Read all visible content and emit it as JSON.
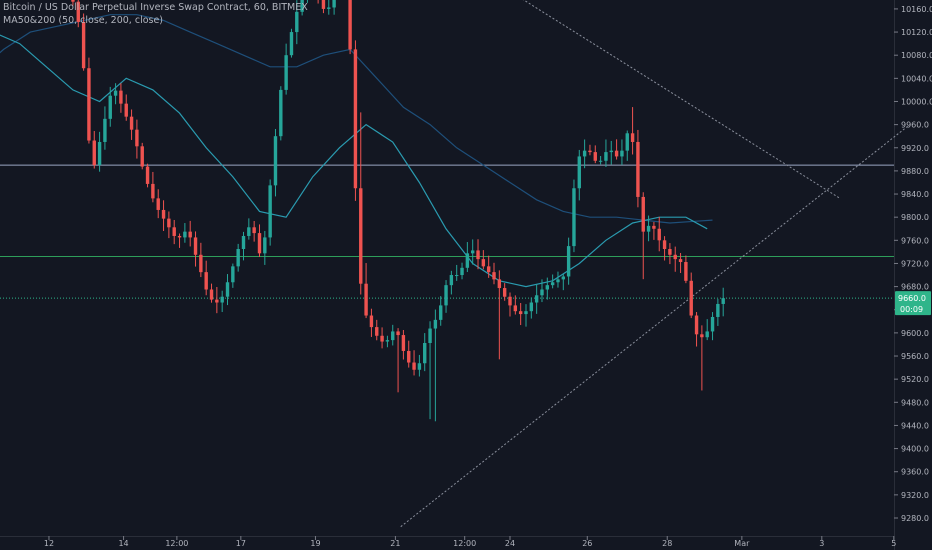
{
  "header": {
    "title": "Bitcoin / US Dollar Perpetual Inverse Swap Contract, 60, BITMEX",
    "indicator_label": "MA50&200",
    "indicator_params": "(50, close, 200, close)"
  },
  "colors": {
    "background": "#131722",
    "up_candle": "#26a69a",
    "down_candle": "#ef5350",
    "ma50": "#2a9bb0",
    "ma200": "#1e4f7a",
    "resistance_line": "#9aa7c4",
    "support_line": "#2e9e5a",
    "last_price_line": "#2fb58a",
    "trendline": "#8a8f9c",
    "axis_text": "#b2b5be"
  },
  "price_tag": {
    "price": "9660.0",
    "countdown": "00:09"
  },
  "chart_data": {
    "type": "candlestick",
    "symbol": "Bitcoin / US Dollar Perpetual Inverse Swap Contract",
    "interval": "60",
    "exchange": "BITMEX",
    "x_tick_labels": [
      "12",
      "14",
      "12:00",
      "17",
      "19",
      "21",
      "12:00",
      "24",
      "26",
      "28",
      "Mar",
      "3",
      "5"
    ],
    "y_ticks": [
      9280,
      9320,
      9360,
      9400,
      9440,
      9480,
      9520,
      9560,
      9600,
      9640,
      9680,
      9720,
      9760,
      9800,
      9840,
      9880,
      9920,
      9960,
      10000,
      10040,
      10080,
      10120,
      10160
    ],
    "y_tick_labels": [
      "9280.0",
      "9320.0",
      "9360.0",
      "9400.0",
      "9440.0",
      "9480.0",
      "9520.0",
      "9560.0",
      "9600.0",
      "9640.0",
      "9680.0",
      "9720.0",
      "9760.0",
      "9800.0",
      "9840.0",
      "9880.0",
      "9920.0",
      "9960.0",
      "10000.0",
      "10040.0",
      "10080.0",
      "10120.0",
      "10160.0"
    ],
    "ylim": [
      9260,
      10170
    ],
    "horizontal_levels": [
      {
        "name": "resistance",
        "price": 9890
      },
      {
        "name": "support",
        "price": 9732
      },
      {
        "name": "last-price",
        "price": 9660
      }
    ],
    "trendlines": [
      {
        "name": "upper-trendline",
        "points": [
          [
            -6,
            10225
          ],
          [
            62,
            9832
          ]
        ]
      },
      {
        "name": "lower-trendline",
        "points": [
          [
            -20.5,
            9265
          ],
          [
            75,
            9960
          ]
        ]
      }
    ],
    "anchors": [
      {
        "t": -130,
        "p": 9760
      },
      {
        "t": -126,
        "p": 9800
      },
      {
        "t": -122,
        "p": 9850
      },
      {
        "t": -118,
        "p": 9840
      },
      {
        "t": -114,
        "p": 9780
      },
      {
        "t": -112,
        "p": 9760
      },
      {
        "t": -108,
        "p": 9795
      },
      {
        "t": -104,
        "p": 9870
      },
      {
        "t": -102,
        "p": 10150
      },
      {
        "t": -98,
        "p": 10180
      },
      {
        "t": -94,
        "p": 10200
      },
      {
        "t": -90,
        "p": 10200
      },
      {
        "t": -86,
        "p": 10195
      },
      {
        "t": -82,
        "p": 10190
      },
      {
        "t": -80,
        "p": 10120
      },
      {
        "t": -78,
        "p": 9870
      },
      {
        "t": -76,
        "p": 9950
      },
      {
        "t": -74,
        "p": 10030
      },
      {
        "t": -72,
        "p": 9985
      },
      {
        "t": -70,
        "p": 9940
      },
      {
        "t": -68,
        "p": 9870
      },
      {
        "t": -66,
        "p": 9820
      },
      {
        "t": -64,
        "p": 9790
      },
      {
        "t": -62,
        "p": 9760
      },
      {
        "t": -60,
        "p": 9780
      },
      {
        "t": -58,
        "p": 9720
      },
      {
        "t": -56,
        "p": 9660
      },
      {
        "t": -54,
        "p": 9650
      },
      {
        "t": -52,
        "p": 9700
      },
      {
        "t": -50,
        "p": 9760
      },
      {
        "t": -48,
        "p": 9790
      },
      {
        "t": -46,
        "p": 9720
      },
      {
        "t": -44,
        "p": 9900
      },
      {
        "t": -42,
        "p": 10060
      },
      {
        "t": -40,
        "p": 10140
      },
      {
        "t": -38,
        "p": 10200
      },
      {
        "t": -36,
        "p": 10190
      },
      {
        "t": -34,
        "p": 10150
      },
      {
        "t": -32,
        "p": 10200
      },
      {
        "t": -30,
        "p": 10210
      },
      {
        "t": -28,
        "p": 9730
      },
      {
        "t": -27,
        "p": 9640
      },
      {
        "t": -25,
        "p": 9600
      },
      {
        "t": -23,
        "p": 9580
      },
      {
        "t": -21,
        "p": 9610
      },
      {
        "t": -19,
        "p": 9555
      },
      {
        "t": -17,
        "p": 9530
      },
      {
        "t": -15,
        "p": 9600
      },
      {
        "t": -13,
        "p": 9630
      },
      {
        "t": -11,
        "p": 9700
      },
      {
        "t": -9,
        "p": 9700
      },
      {
        "t": -7,
        "p": 9750
      },
      {
        "t": -5,
        "p": 9720
      },
      {
        "t": -3,
        "p": 9700
      },
      {
        "t": -1,
        "p": 9670
      },
      {
        "t": 1,
        "p": 9640
      },
      {
        "t": 3,
        "p": 9630
      },
      {
        "t": 5,
        "p": 9660
      },
      {
        "t": 7,
        "p": 9680
      },
      {
        "t": 9,
        "p": 9690
      },
      {
        "t": 11,
        "p": 9700
      },
      {
        "t": 13,
        "p": 9900
      },
      {
        "t": 15,
        "p": 9920
      },
      {
        "t": 17,
        "p": 9890
      },
      {
        "t": 19,
        "p": 9920
      },
      {
        "t": 21,
        "p": 9900
      },
      {
        "t": 23,
        "p": 9960
      },
      {
        "t": 24,
        "p": 9900
      },
      {
        "t": 25,
        "p": 9770
      },
      {
        "t": 27,
        "p": 9790
      },
      {
        "t": 29,
        "p": 9750
      },
      {
        "t": 31,
        "p": 9730
      },
      {
        "t": 33,
        "p": 9720
      },
      {
        "t": 35,
        "p": 9600
      },
      {
        "t": 37,
        "p": 9590
      },
      {
        "t": 39,
        "p": 9640
      },
      {
        "t": 40,
        "p": 9660
      }
    ],
    "ma50_points": [
      [
        -131,
        9990
      ],
      [
        -127,
        9930
      ],
      [
        -122,
        9890
      ],
      [
        -117,
        9900
      ],
      [
        -112,
        9990
      ],
      [
        -107,
        10050
      ],
      [
        -102,
        10100
      ],
      [
        -97,
        10120
      ],
      [
        -92,
        10100
      ],
      [
        -87,
        10060
      ],
      [
        -82,
        10020
      ],
      [
        -77,
        10000
      ],
      [
        -72,
        10040
      ],
      [
        -67,
        10020
      ],
      [
        -62,
        9980
      ],
      [
        -57,
        9920
      ],
      [
        -52,
        9870
      ],
      [
        -47,
        9810
      ],
      [
        -42,
        9800
      ],
      [
        -37,
        9870
      ],
      [
        -32,
        9920
      ],
      [
        -27,
        9960
      ],
      [
        -22,
        9930
      ],
      [
        -17,
        9860
      ],
      [
        -12,
        9780
      ],
      [
        -7,
        9720
      ],
      [
        -2,
        9690
      ],
      [
        3,
        9680
      ],
      [
        8,
        9690
      ],
      [
        13,
        9720
      ],
      [
        18,
        9760
      ],
      [
        23,
        9790
      ],
      [
        28,
        9800
      ],
      [
        33,
        9800
      ],
      [
        37,
        9780
      ]
    ],
    "ma200_points": [
      [
        -131,
        9650
      ],
      [
        -125,
        9680
      ],
      [
        -120,
        9720
      ],
      [
        -115,
        9800
      ],
      [
        -110,
        9900
      ],
      [
        -105,
        9990
      ],
      [
        -100,
        10050
      ],
      [
        -95,
        10090
      ],
      [
        -90,
        10120
      ],
      [
        -85,
        10130
      ],
      [
        -80,
        10140
      ],
      [
        -75,
        10150
      ],
      [
        -70,
        10150
      ],
      [
        -65,
        10140
      ],
      [
        -60,
        10120
      ],
      [
        -55,
        10100
      ],
      [
        -50,
        10080
      ],
      [
        -45,
        10060
      ],
      [
        -40,
        10060
      ],
      [
        -35,
        10080
      ],
      [
        -30,
        10090
      ],
      [
        -25,
        10040
      ],
      [
        -20,
        9990
      ],
      [
        -15,
        9960
      ],
      [
        -10,
        9920
      ],
      [
        -5,
        9890
      ],
      [
        0,
        9860
      ],
      [
        5,
        9830
      ],
      [
        10,
        9810
      ],
      [
        15,
        9800
      ],
      [
        20,
        9800
      ],
      [
        25,
        9795
      ],
      [
        30,
        9790
      ],
      [
        35,
        9793
      ],
      [
        38,
        9795
      ]
    ]
  }
}
